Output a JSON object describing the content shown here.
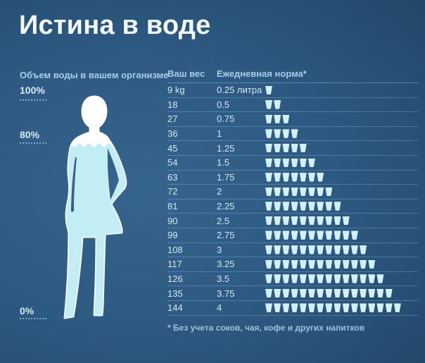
{
  "title": "Истина в воде",
  "body_section": {
    "heading": "Объем воды в вашем организме",
    "scale_labels": [
      "100%",
      "80%",
      "0%"
    ]
  },
  "table": {
    "header": {
      "weight": "Ваш вес",
      "norm": "Ежедневная норма*"
    },
    "rows": [
      {
        "weight": "9 kg",
        "norm": "0.25 литра",
        "cups": 1
      },
      {
        "weight": "18",
        "norm": "0.5",
        "cups": 2
      },
      {
        "weight": "27",
        "norm": "0.75",
        "cups": 3
      },
      {
        "weight": "36",
        "norm": "1",
        "cups": 4
      },
      {
        "weight": "45",
        "norm": "1.25",
        "cups": 5
      },
      {
        "weight": "54",
        "norm": "1.5",
        "cups": 6
      },
      {
        "weight": "63",
        "norm": "1.75",
        "cups": 7
      },
      {
        "weight": "72",
        "norm": "2",
        "cups": 8
      },
      {
        "weight": "81",
        "norm": "2.25",
        "cups": 9
      },
      {
        "weight": "90",
        "norm": "2.5",
        "cups": 10
      },
      {
        "weight": "99",
        "norm": "2.75",
        "cups": 11
      },
      {
        "weight": "108",
        "norm": "3",
        "cups": 12
      },
      {
        "weight": "117",
        "norm": "3.25",
        "cups": 13
      },
      {
        "weight": "126",
        "norm": "3.5",
        "cups": 14
      },
      {
        "weight": "135",
        "norm": "3.75",
        "cups": 15
      },
      {
        "weight": "144",
        "norm": "4",
        "cups": 16
      }
    ]
  },
  "footnote": "* Без учета соков, чая, кофе и других напитков",
  "colors": {
    "background_center": "#35648c",
    "background_edge": "#214668",
    "title_text": "#f2f7fa",
    "accent_text": "#a9cde4",
    "row_text": "#d5e8f4",
    "cup": "#d2f0f6",
    "body_water": "#c3edf5",
    "silhouette": "#ffffff"
  },
  "chart_data": {
    "type": "table",
    "title": "Истина в воде",
    "left_panel_label": "Объем воды в вашем организме",
    "body_water_scale_percent": [
      100,
      80,
      0
    ],
    "columns": [
      "Ваш вес",
      "Ежедневная норма*"
    ],
    "weights_kg": [
      9,
      18,
      27,
      36,
      45,
      54,
      63,
      72,
      81,
      90,
      99,
      108,
      117,
      126,
      135,
      144
    ],
    "daily_norm_liters": [
      0.25,
      0.5,
      0.75,
      1,
      1.25,
      1.5,
      1.75,
      2,
      2.25,
      2.5,
      2.75,
      3,
      3.25,
      3.5,
      3.75,
      4
    ],
    "cups_per_row": [
      1,
      2,
      3,
      4,
      5,
      6,
      7,
      8,
      9,
      10,
      11,
      12,
      13,
      14,
      15,
      16
    ],
    "footnote": "* Без учета соков, чая, кофе и других напитков"
  }
}
